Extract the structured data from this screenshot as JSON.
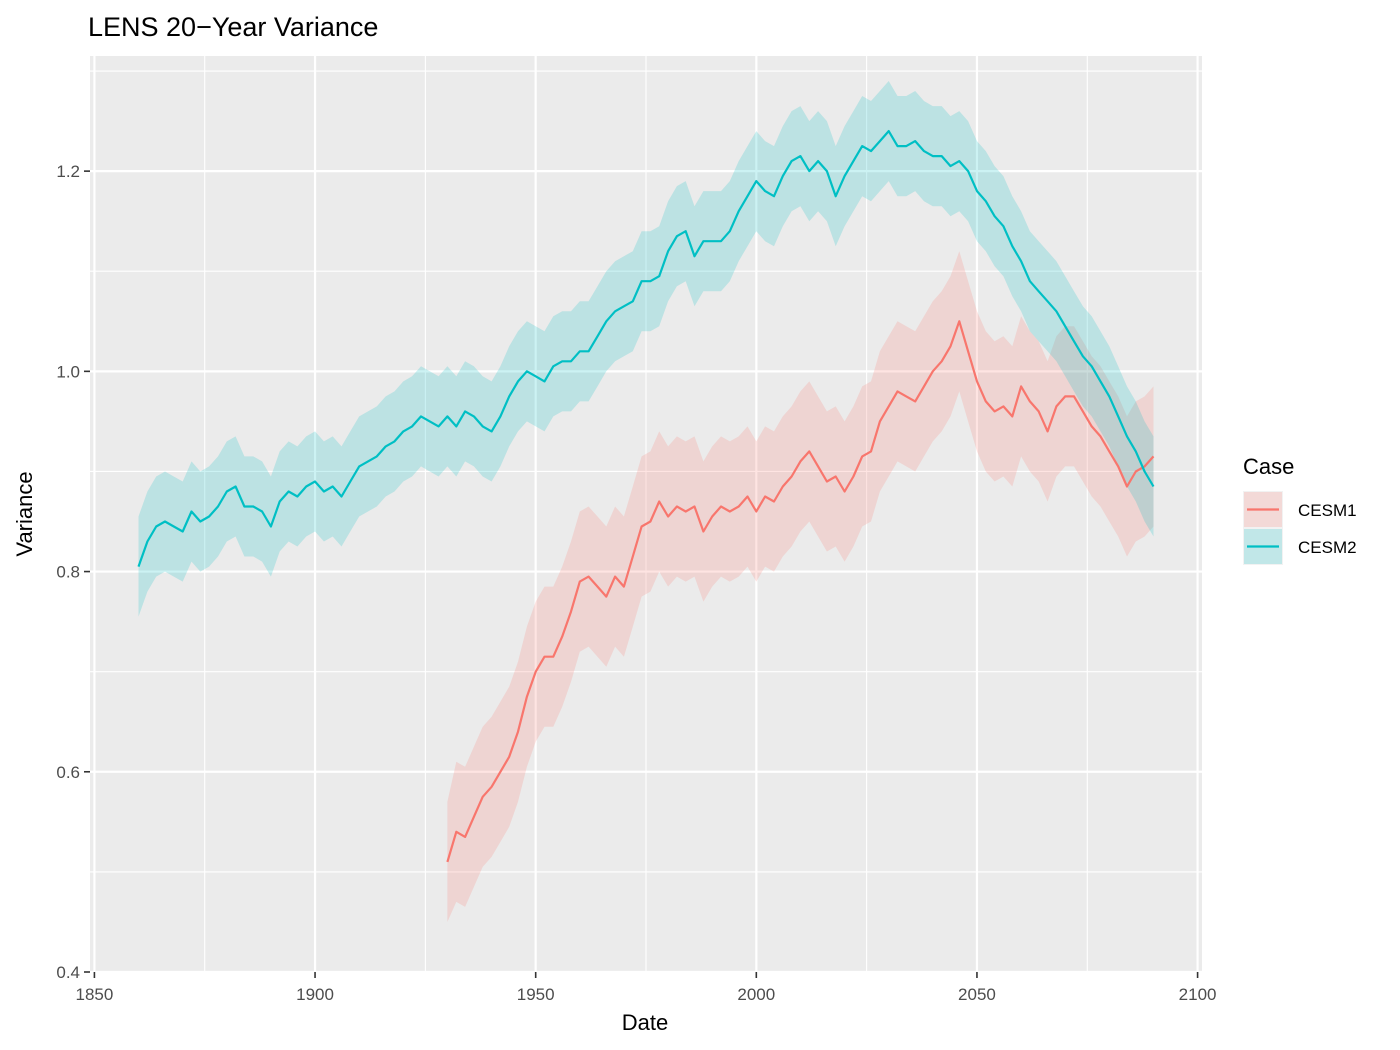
{
  "chart_data": {
    "type": "line",
    "title": "LENS 20−Year Variance",
    "xlabel": "Date",
    "ylabel": "Variance",
    "xlim": [
      1849,
      2101
    ],
    "ylim": [
      0.4,
      1.315
    ],
    "x_ticks": [
      1850,
      1900,
      1950,
      2000,
      2050,
      2100
    ],
    "x_tick_labels": [
      "1850",
      "1900",
      "1950",
      "2000",
      "2050",
      "2100"
    ],
    "y_ticks": [
      0.4,
      0.6,
      0.8,
      1.0,
      1.2
    ],
    "y_tick_labels": [
      "0.4",
      "0.6",
      "0.8",
      "1.0",
      "1.2"
    ],
    "grid": true,
    "legend": {
      "title": "Case",
      "position": "right"
    },
    "series": [
      {
        "name": "CESM1",
        "color": "#F8766D",
        "points": [
          [
            1930,
            0.51,
            0.06
          ],
          [
            1932,
            0.54,
            0.07
          ],
          [
            1934,
            0.535,
            0.07
          ],
          [
            1936,
            0.555,
            0.07
          ],
          [
            1938,
            0.575,
            0.07
          ],
          [
            1940,
            0.585,
            0.07
          ],
          [
            1942,
            0.6,
            0.07
          ],
          [
            1944,
            0.615,
            0.07
          ],
          [
            1946,
            0.64,
            0.07
          ],
          [
            1948,
            0.675,
            0.07
          ],
          [
            1950,
            0.7,
            0.07
          ],
          [
            1952,
            0.715,
            0.07
          ],
          [
            1954,
            0.715,
            0.07
          ],
          [
            1956,
            0.735,
            0.07
          ],
          [
            1958,
            0.76,
            0.07
          ],
          [
            1960,
            0.79,
            0.07
          ],
          [
            1962,
            0.795,
            0.07
          ],
          [
            1964,
            0.785,
            0.07
          ],
          [
            1966,
            0.775,
            0.07
          ],
          [
            1968,
            0.795,
            0.07
          ],
          [
            1970,
            0.785,
            0.07
          ],
          [
            1972,
            0.815,
            0.07
          ],
          [
            1974,
            0.845,
            0.07
          ],
          [
            1976,
            0.85,
            0.07
          ],
          [
            1978,
            0.87,
            0.07
          ],
          [
            1980,
            0.855,
            0.07
          ],
          [
            1982,
            0.865,
            0.07
          ],
          [
            1984,
            0.86,
            0.07
          ],
          [
            1986,
            0.865,
            0.07
          ],
          [
            1988,
            0.84,
            0.07
          ],
          [
            1990,
            0.855,
            0.07
          ],
          [
            1992,
            0.865,
            0.07
          ],
          [
            1994,
            0.86,
            0.07
          ],
          [
            1996,
            0.865,
            0.07
          ],
          [
            1998,
            0.875,
            0.07
          ],
          [
            2000,
            0.86,
            0.07
          ],
          [
            2002,
            0.875,
            0.07
          ],
          [
            2004,
            0.87,
            0.07
          ],
          [
            2006,
            0.885,
            0.07
          ],
          [
            2008,
            0.895,
            0.07
          ],
          [
            2010,
            0.91,
            0.07
          ],
          [
            2012,
            0.92,
            0.07
          ],
          [
            2014,
            0.905,
            0.07
          ],
          [
            2016,
            0.89,
            0.07
          ],
          [
            2018,
            0.895,
            0.07
          ],
          [
            2020,
            0.88,
            0.07
          ],
          [
            2022,
            0.895,
            0.07
          ],
          [
            2024,
            0.915,
            0.07
          ],
          [
            2026,
            0.92,
            0.07
          ],
          [
            2028,
            0.95,
            0.07
          ],
          [
            2030,
            0.965,
            0.07
          ],
          [
            2032,
            0.98,
            0.07
          ],
          [
            2034,
            0.975,
            0.07
          ],
          [
            2036,
            0.97,
            0.07
          ],
          [
            2038,
            0.985,
            0.07
          ],
          [
            2040,
            1.0,
            0.07
          ],
          [
            2042,
            1.01,
            0.07
          ],
          [
            2044,
            1.025,
            0.07
          ],
          [
            2046,
            1.05,
            0.07
          ],
          [
            2048,
            1.02,
            0.07
          ],
          [
            2050,
            0.99,
            0.07
          ],
          [
            2052,
            0.97,
            0.07
          ],
          [
            2054,
            0.96,
            0.07
          ],
          [
            2056,
            0.965,
            0.07
          ],
          [
            2058,
            0.955,
            0.07
          ],
          [
            2060,
            0.985,
            0.07
          ],
          [
            2062,
            0.97,
            0.07
          ],
          [
            2064,
            0.96,
            0.07
          ],
          [
            2066,
            0.94,
            0.07
          ],
          [
            2068,
            0.965,
            0.07
          ],
          [
            2070,
            0.975,
            0.07
          ],
          [
            2072,
            0.975,
            0.07
          ],
          [
            2074,
            0.96,
            0.07
          ],
          [
            2076,
            0.945,
            0.07
          ],
          [
            2078,
            0.935,
            0.07
          ],
          [
            2080,
            0.92,
            0.07
          ],
          [
            2082,
            0.905,
            0.07
          ],
          [
            2084,
            0.885,
            0.07
          ],
          [
            2086,
            0.9,
            0.07
          ],
          [
            2088,
            0.905,
            0.07
          ],
          [
            2090,
            0.915,
            0.07
          ]
        ]
      },
      {
        "name": "CESM2",
        "color": "#00BFC4",
        "points": [
          [
            1860,
            0.805,
            0.05
          ],
          [
            1862,
            0.83,
            0.05
          ],
          [
            1864,
            0.845,
            0.05
          ],
          [
            1866,
            0.85,
            0.05
          ],
          [
            1868,
            0.845,
            0.05
          ],
          [
            1870,
            0.84,
            0.05
          ],
          [
            1872,
            0.86,
            0.05
          ],
          [
            1874,
            0.85,
            0.05
          ],
          [
            1876,
            0.855,
            0.05
          ],
          [
            1878,
            0.865,
            0.05
          ],
          [
            1880,
            0.88,
            0.05
          ],
          [
            1882,
            0.885,
            0.05
          ],
          [
            1884,
            0.865,
            0.05
          ],
          [
            1886,
            0.865,
            0.05
          ],
          [
            1888,
            0.86,
            0.05
          ],
          [
            1890,
            0.845,
            0.05
          ],
          [
            1892,
            0.87,
            0.05
          ],
          [
            1894,
            0.88,
            0.05
          ],
          [
            1896,
            0.875,
            0.05
          ],
          [
            1898,
            0.885,
            0.05
          ],
          [
            1900,
            0.89,
            0.05
          ],
          [
            1902,
            0.88,
            0.05
          ],
          [
            1904,
            0.885,
            0.05
          ],
          [
            1906,
            0.875,
            0.05
          ],
          [
            1908,
            0.89,
            0.05
          ],
          [
            1910,
            0.905,
            0.05
          ],
          [
            1912,
            0.91,
            0.05
          ],
          [
            1914,
            0.915,
            0.05
          ],
          [
            1916,
            0.925,
            0.05
          ],
          [
            1918,
            0.93,
            0.05
          ],
          [
            1920,
            0.94,
            0.05
          ],
          [
            1922,
            0.945,
            0.05
          ],
          [
            1924,
            0.955,
            0.05
          ],
          [
            1926,
            0.95,
            0.05
          ],
          [
            1928,
            0.945,
            0.05
          ],
          [
            1930,
            0.955,
            0.05
          ],
          [
            1932,
            0.945,
            0.05
          ],
          [
            1934,
            0.96,
            0.05
          ],
          [
            1936,
            0.955,
            0.05
          ],
          [
            1938,
            0.945,
            0.05
          ],
          [
            1940,
            0.94,
            0.05
          ],
          [
            1942,
            0.955,
            0.05
          ],
          [
            1944,
            0.975,
            0.05
          ],
          [
            1946,
            0.99,
            0.05
          ],
          [
            1948,
            1.0,
            0.05
          ],
          [
            1950,
            0.995,
            0.05
          ],
          [
            1952,
            0.99,
            0.05
          ],
          [
            1954,
            1.005,
            0.05
          ],
          [
            1956,
            1.01,
            0.05
          ],
          [
            1958,
            1.01,
            0.05
          ],
          [
            1960,
            1.02,
            0.05
          ],
          [
            1962,
            1.02,
            0.05
          ],
          [
            1964,
            1.035,
            0.05
          ],
          [
            1966,
            1.05,
            0.05
          ],
          [
            1968,
            1.06,
            0.05
          ],
          [
            1970,
            1.065,
            0.05
          ],
          [
            1972,
            1.07,
            0.05
          ],
          [
            1974,
            1.09,
            0.05
          ],
          [
            1976,
            1.09,
            0.05
          ],
          [
            1978,
            1.095,
            0.05
          ],
          [
            1980,
            1.12,
            0.05
          ],
          [
            1982,
            1.135,
            0.05
          ],
          [
            1984,
            1.14,
            0.05
          ],
          [
            1986,
            1.115,
            0.05
          ],
          [
            1988,
            1.13,
            0.05
          ],
          [
            1990,
            1.13,
            0.05
          ],
          [
            1992,
            1.13,
            0.05
          ],
          [
            1994,
            1.14,
            0.05
          ],
          [
            1996,
            1.16,
            0.05
          ],
          [
            1998,
            1.175,
            0.05
          ],
          [
            2000,
            1.19,
            0.05
          ],
          [
            2002,
            1.18,
            0.05
          ],
          [
            2004,
            1.175,
            0.05
          ],
          [
            2006,
            1.195,
            0.05
          ],
          [
            2008,
            1.21,
            0.05
          ],
          [
            2010,
            1.215,
            0.05
          ],
          [
            2012,
            1.2,
            0.05
          ],
          [
            2014,
            1.21,
            0.05
          ],
          [
            2016,
            1.2,
            0.05
          ],
          [
            2018,
            1.175,
            0.05
          ],
          [
            2020,
            1.195,
            0.05
          ],
          [
            2022,
            1.21,
            0.05
          ],
          [
            2024,
            1.225,
            0.05
          ],
          [
            2026,
            1.22,
            0.05
          ],
          [
            2028,
            1.23,
            0.05
          ],
          [
            2030,
            1.24,
            0.05
          ],
          [
            2032,
            1.225,
            0.05
          ],
          [
            2034,
            1.225,
            0.05
          ],
          [
            2036,
            1.23,
            0.05
          ],
          [
            2038,
            1.22,
            0.05
          ],
          [
            2040,
            1.215,
            0.05
          ],
          [
            2042,
            1.215,
            0.05
          ],
          [
            2044,
            1.205,
            0.05
          ],
          [
            2046,
            1.21,
            0.05
          ],
          [
            2048,
            1.2,
            0.05
          ],
          [
            2050,
            1.18,
            0.05
          ],
          [
            2052,
            1.17,
            0.05
          ],
          [
            2054,
            1.155,
            0.05
          ],
          [
            2056,
            1.145,
            0.05
          ],
          [
            2058,
            1.125,
            0.05
          ],
          [
            2060,
            1.11,
            0.05
          ],
          [
            2062,
            1.09,
            0.05
          ],
          [
            2064,
            1.08,
            0.05
          ],
          [
            2066,
            1.07,
            0.05
          ],
          [
            2068,
            1.06,
            0.05
          ],
          [
            2070,
            1.045,
            0.05
          ],
          [
            2072,
            1.03,
            0.05
          ],
          [
            2074,
            1.015,
            0.05
          ],
          [
            2076,
            1.005,
            0.05
          ],
          [
            2078,
            0.99,
            0.05
          ],
          [
            2080,
            0.975,
            0.05
          ],
          [
            2082,
            0.955,
            0.05
          ],
          [
            2084,
            0.935,
            0.05
          ],
          [
            2086,
            0.92,
            0.05
          ],
          [
            2088,
            0.9,
            0.05
          ],
          [
            2090,
            0.885,
            0.05
          ]
        ]
      }
    ]
  }
}
